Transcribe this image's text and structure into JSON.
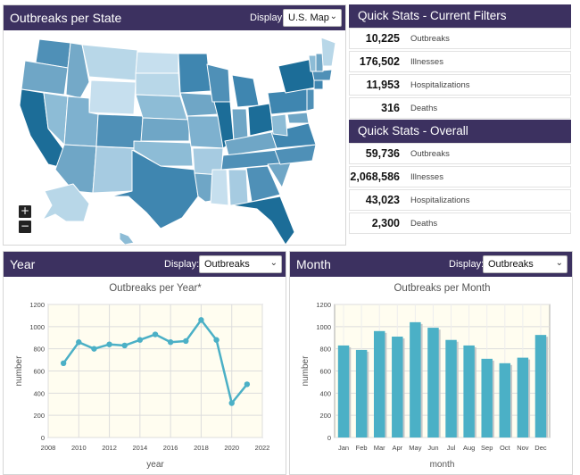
{
  "map_panel": {
    "title": "Outbreaks per State",
    "display_label": "Display:",
    "display_value": "U.S. Map",
    "zoom_in": "+",
    "zoom_out": "−"
  },
  "quick_stats_current": {
    "title": "Quick Stats - Current Filters",
    "rows": [
      {
        "value": "10,225",
        "label": "Outbreaks"
      },
      {
        "value": "176,502",
        "label": "Illnesses"
      },
      {
        "value": "11,953",
        "label": "Hospitalizations"
      },
      {
        "value": "316",
        "label": "Deaths"
      }
    ]
  },
  "quick_stats_overall": {
    "title": "Quick Stats - Overall",
    "rows": [
      {
        "value": "59,736",
        "label": "Outbreaks"
      },
      {
        "value": "2,068,586",
        "label": "Illnesses"
      },
      {
        "value": "43,023",
        "label": "Hospitalizations"
      },
      {
        "value": "2,300",
        "label": "Deaths"
      }
    ]
  },
  "year_panel": {
    "title": "Year",
    "display_label": "Display:",
    "display_value": "Outbreaks"
  },
  "month_panel": {
    "title": "Month",
    "display_label": "Display:",
    "display_value": "Outbreaks"
  },
  "colors": {
    "header": "#3c3160",
    "series": "#4bb0c6",
    "plot_bg": "#fffdf0"
  },
  "chart_data": [
    {
      "type": "line",
      "title": "Outbreaks per Year*",
      "xlabel": "year",
      "ylabel": "number",
      "xlim": [
        2008,
        2022
      ],
      "ylim": [
        0,
        1200
      ],
      "xticks": [
        2008,
        2010,
        2012,
        2014,
        2016,
        2018,
        2020,
        2022
      ],
      "yticks": [
        0,
        200,
        400,
        600,
        800,
        1000,
        1200
      ],
      "grid": true,
      "x": [
        2009,
        2010,
        2011,
        2012,
        2013,
        2014,
        2015,
        2016,
        2017,
        2018,
        2019,
        2020,
        2021
      ],
      "values": [
        670,
        860,
        800,
        840,
        830,
        880,
        930,
        860,
        870,
        1060,
        880,
        310,
        480
      ]
    },
    {
      "type": "bar",
      "title": "Outbreaks per Month",
      "xlabel": "month",
      "ylabel": "number",
      "ylim": [
        0,
        1200
      ],
      "yticks": [
        0,
        200,
        400,
        600,
        800,
        1000,
        1200
      ],
      "grid": true,
      "categories": [
        "Jan",
        "Feb",
        "Mar",
        "Apr",
        "May",
        "Jun",
        "Jul",
        "Aug",
        "Sep",
        "Oct",
        "Nov",
        "Dec"
      ],
      "values": [
        830,
        790,
        960,
        910,
        1040,
        990,
        880,
        830,
        710,
        670,
        720,
        925
      ]
    }
  ]
}
